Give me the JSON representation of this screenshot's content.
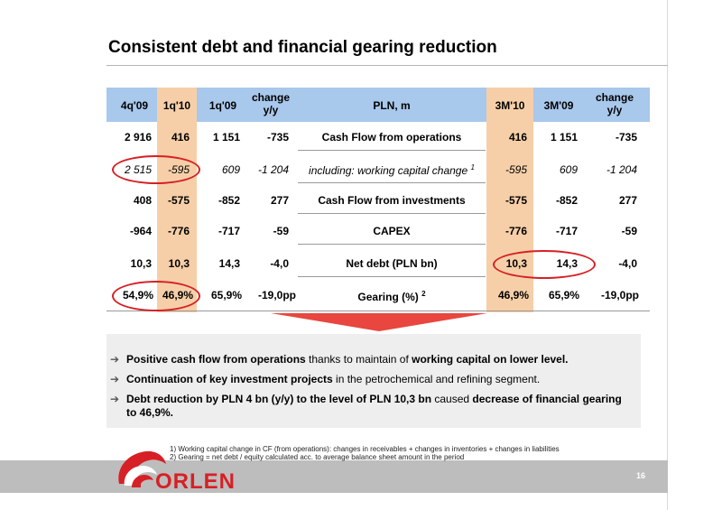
{
  "title": "Consistent debt and financial gearing reduction",
  "header": {
    "col_4q09": "4q'09",
    "col_1q10": "1q'10",
    "col_1q09": "1q'09",
    "change_line1": "change",
    "change_line2": "y/y",
    "unit": "PLN, m",
    "col_3m10": "3M'10",
    "col_3m09": "3M'09",
    "change2_line1": "change",
    "change2_line2": "y/y"
  },
  "rows": [
    {
      "q4_09": "2 916",
      "q1_10": "416",
      "q1_09": "1 151",
      "chg": "-735",
      "label": "Cash Flow from operations",
      "sup": "",
      "m3_10": "416",
      "m3_09": "1 151",
      "chg2": "-735"
    },
    {
      "q4_09": "2 515",
      "q1_10": "-595",
      "q1_09": "609",
      "chg": "-1 204",
      "label": "including: working capital change",
      "sup": "1",
      "m3_10": "-595",
      "m3_09": "609",
      "chg2": "-1 204"
    },
    {
      "q4_09": "408",
      "q1_10": "-575",
      "q1_09": "-852",
      "chg": "277",
      "label": "Cash Flow from investments",
      "sup": "",
      "m3_10": "-575",
      "m3_09": "-852",
      "chg2": "277"
    },
    {
      "q4_09": "-964",
      "q1_10": "-776",
      "q1_09": "-717",
      "chg": "-59",
      "label": "CAPEX",
      "sup": "",
      "m3_10": "-776",
      "m3_09": "-717",
      "chg2": "-59"
    },
    {
      "q4_09": "10,3",
      "q1_10": "10,3",
      "q1_09": "14,3",
      "chg": "-4,0",
      "label": "Net debt (PLN bn)",
      "sup": "",
      "m3_10": "10,3",
      "m3_09": "14,3",
      "chg2": "-4,0"
    },
    {
      "q4_09": "54,9%",
      "q1_10": "46,9%",
      "q1_09": "65,9%",
      "chg": "-19,0pp",
      "label": "Gearing (%)",
      "sup": "2",
      "m3_10": "46,9%",
      "m3_09": "65,9%",
      "chg2": "-19,0pp"
    }
  ],
  "bullets": [
    {
      "b1": "Positive cash flow from operations",
      "t1": " thanks to maintain of ",
      "b2": "working capital on lower level.",
      "t2": ""
    },
    {
      "b1": "Continuation of key investment projects",
      "t1": " in the petrochemical and refining segment.",
      "b2": "",
      "t2": ""
    },
    {
      "b1": "Debt reduction by PLN 4 bn (y/y) to the level of PLN 10,3 bn",
      "t1": " caused ",
      "b2": "decrease of financial gearing to 46,9%.",
      "t2": ""
    }
  ],
  "footnotes": [
    "1) Working capital change in CF (from operations): changes in receivables + changes in inventories + changes in liabilities",
    "2) Gearing = net debt / equity calculated acc. to average balance sheet amount in the period"
  ],
  "brand": "ORLEN",
  "page_number": "16",
  "colors": {
    "header_blue": "#a8c8ec",
    "highlight_orange": "#f6cfa8",
    "accent_red": "#d62025"
  }
}
